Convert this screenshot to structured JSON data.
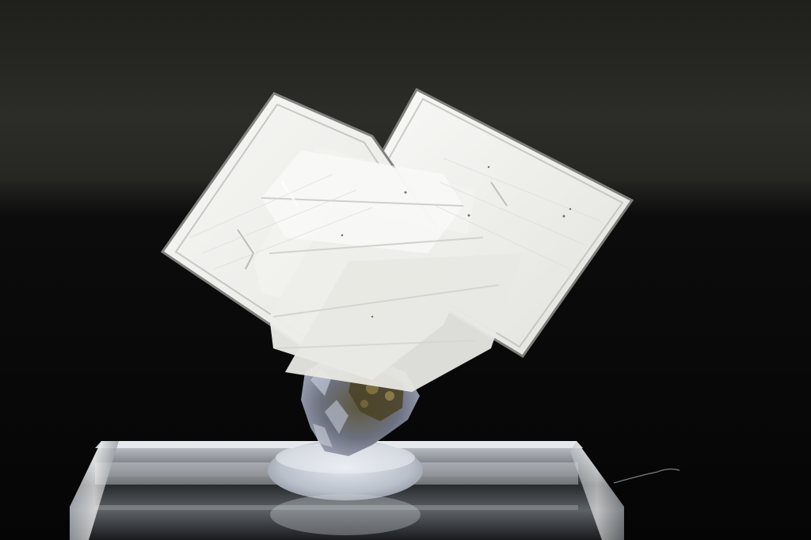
{
  "photo": {
    "subject": "mineral-specimen",
    "colors": {
      "backdrop_top": "#2b2b28",
      "backdrop_bottom": "#060606",
      "crystal_white": "#f2f2ef",
      "crystal_edge": "#8d8d8a",
      "matrix_gray": "#8c93a3",
      "matrix_dark": "#3f3a2a",
      "stand_acrylic": "#cfd3d8"
    }
  }
}
